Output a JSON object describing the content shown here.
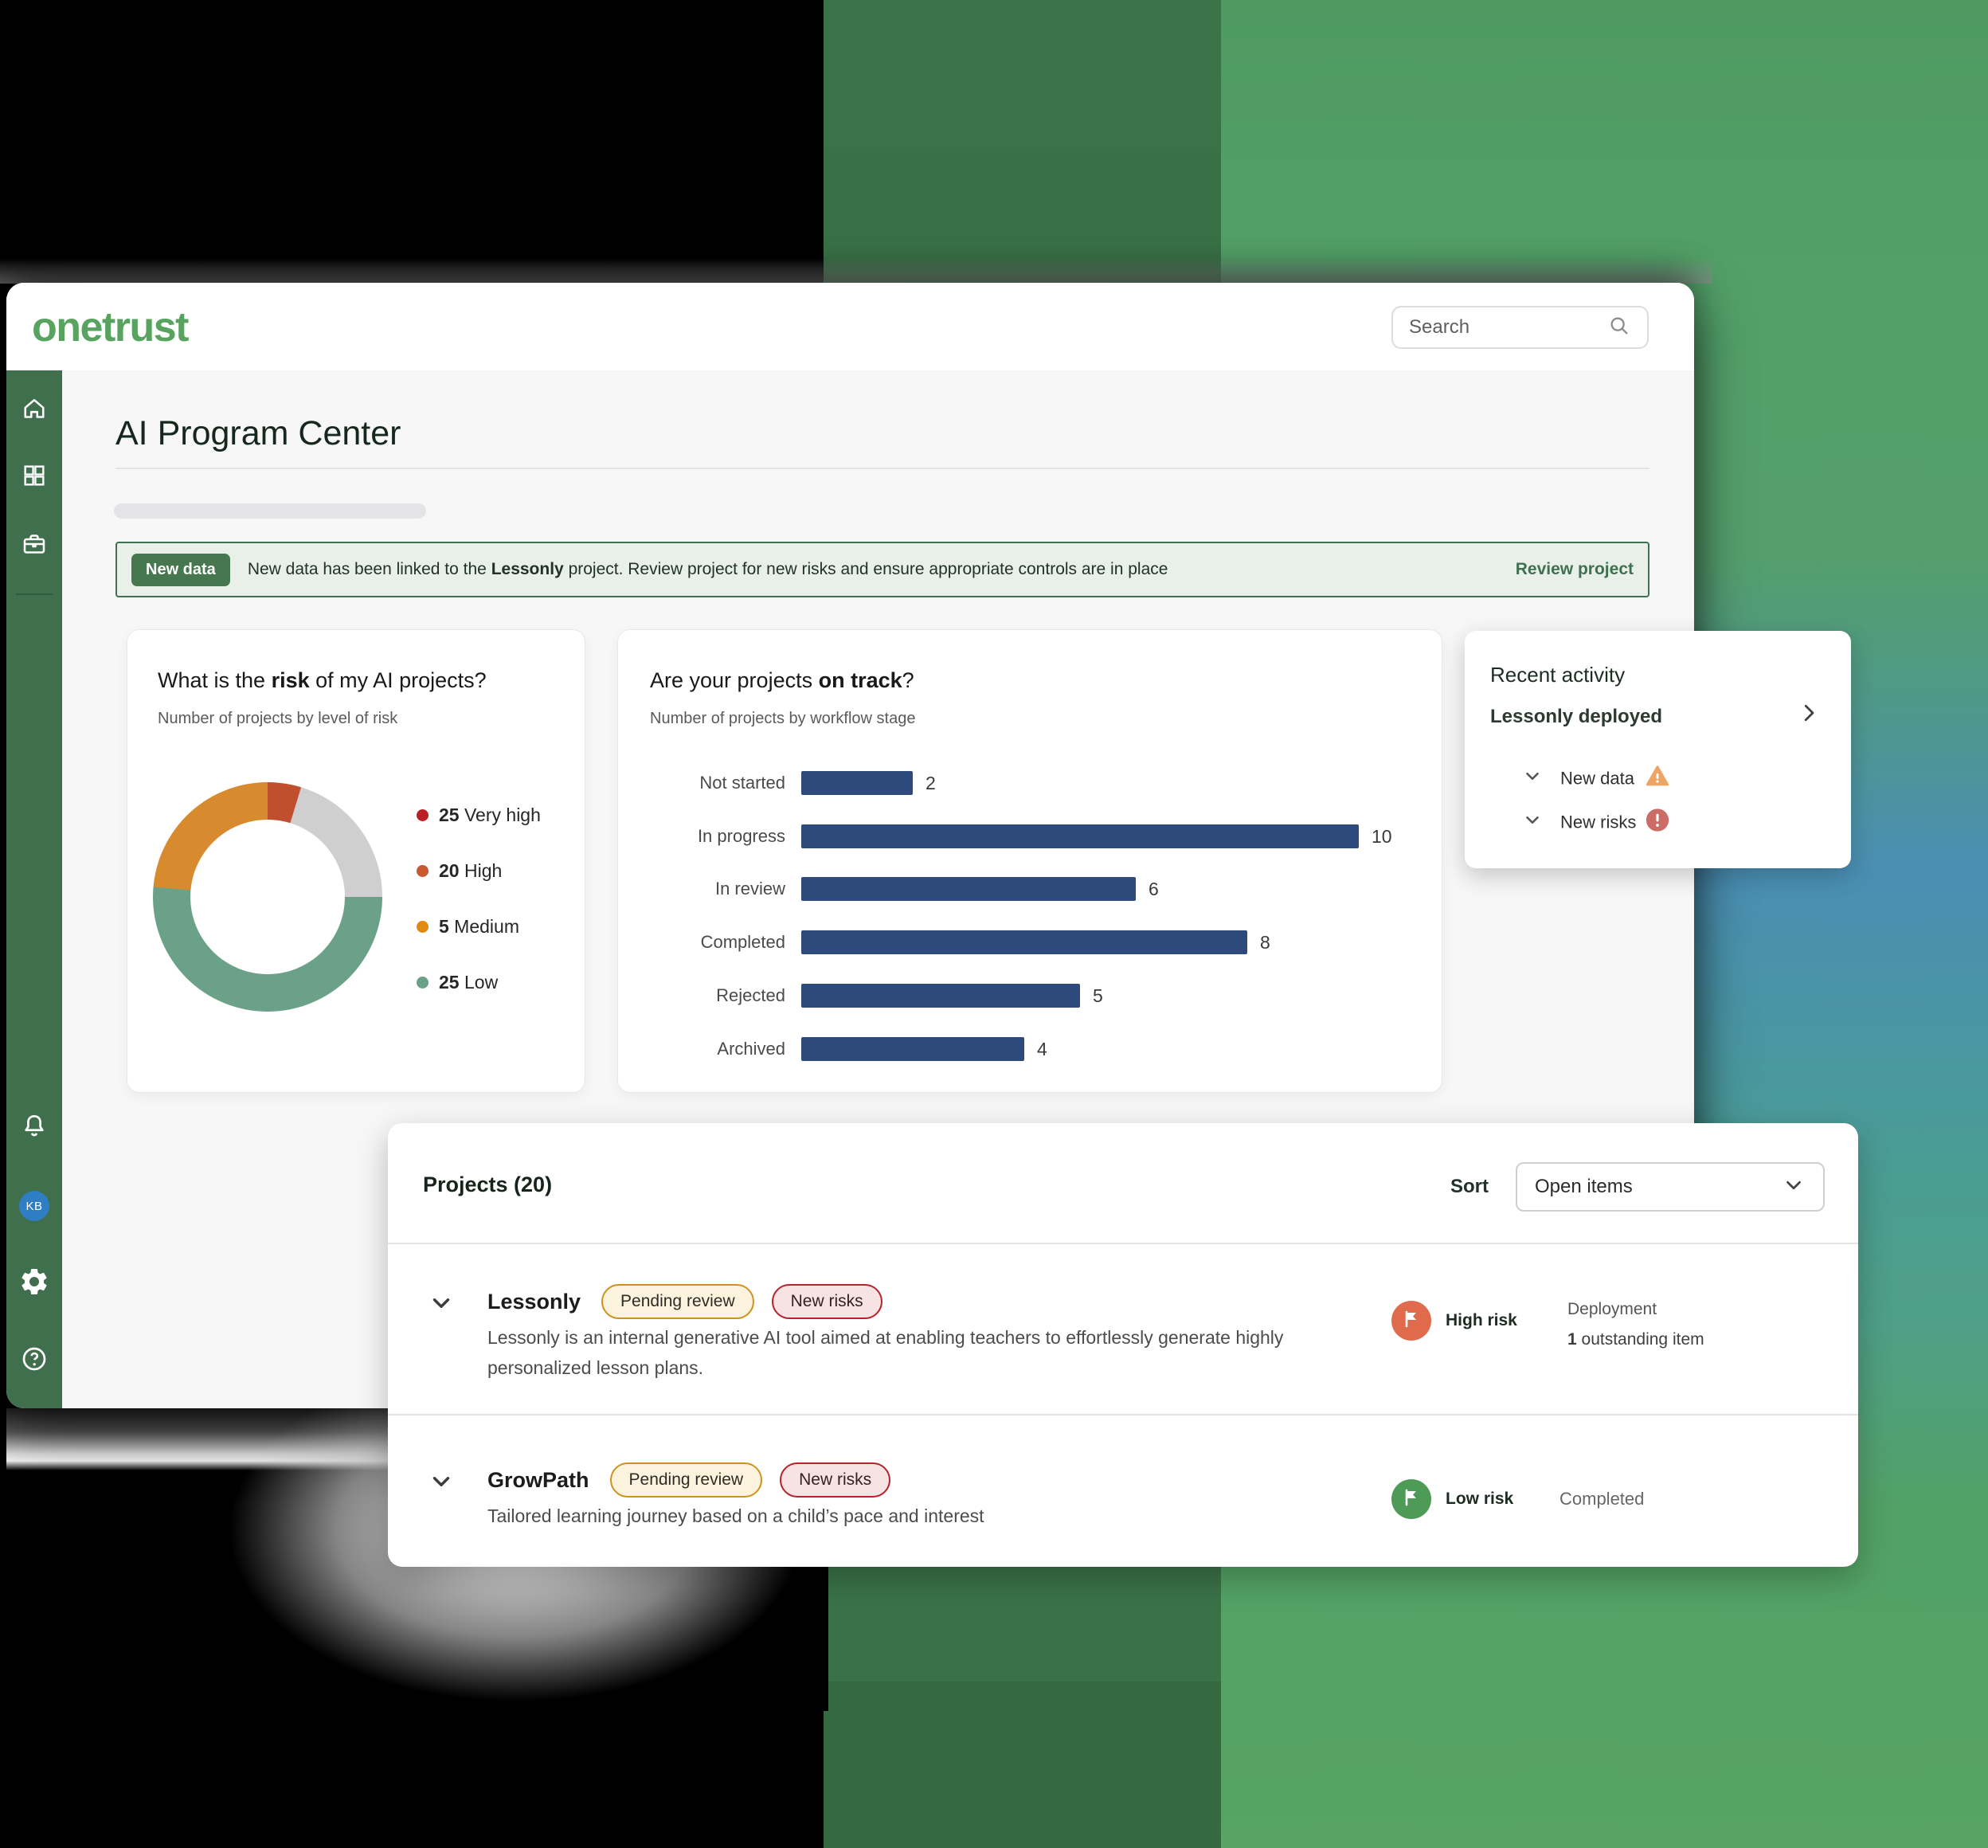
{
  "background": {
    "left_color": "#000000",
    "middle_color": "#3a7148",
    "right_top": "#4e9a61",
    "right_blue": "#4a8eb3",
    "right_teal": "#4b9d92",
    "right_bottom": "#57a464"
  },
  "header": {
    "logo": "onetrust",
    "search_placeholder": "Search"
  },
  "sidebar": {
    "top_icons": [
      "home-icon",
      "grid-icon",
      "briefcase-icon"
    ],
    "bottom_icons": [
      "bell-icon",
      "avatar",
      "gear-icon",
      "help-icon"
    ],
    "avatar_initials": "KB"
  },
  "page": {
    "title": "AI Program Center"
  },
  "banner": {
    "badge": "New data",
    "message_pre": "New data has been linked to the ",
    "message_bold": "Lessonly",
    "message_post": " project. Review project for new risks and ensure appropriate controls are in place",
    "action": "Review project"
  },
  "cards": {
    "risk": {
      "title_pre": "What is the ",
      "title_bold": "risk",
      "title_post": " of my AI projects?",
      "subtitle": "Number of projects by level of risk",
      "chart_data": {
        "type": "pie",
        "style": "donut",
        "title": "What is the risk of my AI projects?",
        "legend_position": "right",
        "legend": [
          {
            "value": 25,
            "label": "Very high",
            "color": "#b92025"
          },
          {
            "value": 20,
            "label": "High",
            "color": "#c85a31"
          },
          {
            "value": 5,
            "label": "Medium",
            "color": "#e08a13"
          },
          {
            "value": 25,
            "label": "Low",
            "color": "#6ba189"
          }
        ],
        "segments_degrees": [
          {
            "color": "#bf4f2e",
            "from": 0,
            "to": 17
          },
          {
            "color": "#cfcfcf",
            "from": 17,
            "to": 90
          },
          {
            "color": "#6ba189",
            "from": 90,
            "to": 275
          },
          {
            "color": "#d78b2e",
            "from": 275,
            "to": 360
          }
        ]
      }
    },
    "on_track": {
      "title_pre": "Are your projects ",
      "title_bold": "on track",
      "title_post": "?",
      "subtitle": "Number of projects by workflow stage",
      "chart_data": {
        "type": "bar",
        "orientation": "horizontal",
        "title": "Are your projects on track?",
        "categories": [
          "Not started",
          "In progress",
          "In review",
          "Completed",
          "Rejected",
          "Archived"
        ],
        "values": [
          2,
          10,
          6,
          8,
          5,
          4
        ],
        "bar_color": "#2e4a7c",
        "xlim": [
          0,
          10
        ],
        "grid": false
      }
    },
    "recent": {
      "title": "Recent activity",
      "event": "Lessonly deployed",
      "items": [
        {
          "label": "New data",
          "icon": "warning-triangle-icon",
          "icon_color": "#eda566"
        },
        {
          "label": "New risks",
          "icon": "alert-circle-icon",
          "icon_color": "#cb6d66"
        }
      ]
    }
  },
  "projects": {
    "title": "Projects (20)",
    "sort_label": "Sort",
    "sort_value": "Open items",
    "rows": [
      {
        "name": "Lessonly",
        "pills": [
          {
            "label": "Pending review",
            "type": "pending"
          },
          {
            "label": "New risks",
            "type": "risk"
          }
        ],
        "description": "Lessonly is an internal generative AI tool aimed at enabling teachers to effortlessly generate highly personalized lesson plans.",
        "risk_label": "High risk",
        "risk_color": "#df6b4c",
        "stage": "Deployment",
        "outstanding_bold": "1",
        "outstanding_rest": " outstanding item"
      },
      {
        "name": "GrowPath",
        "pills": [
          {
            "label": "Pending review",
            "type": "pending"
          },
          {
            "label": "New risks",
            "type": "risk"
          }
        ],
        "description": "Tailored learning journey based on a child’s pace and interest",
        "risk_label": "Low risk",
        "risk_color": "#4d9b57",
        "status": "Completed"
      }
    ]
  }
}
